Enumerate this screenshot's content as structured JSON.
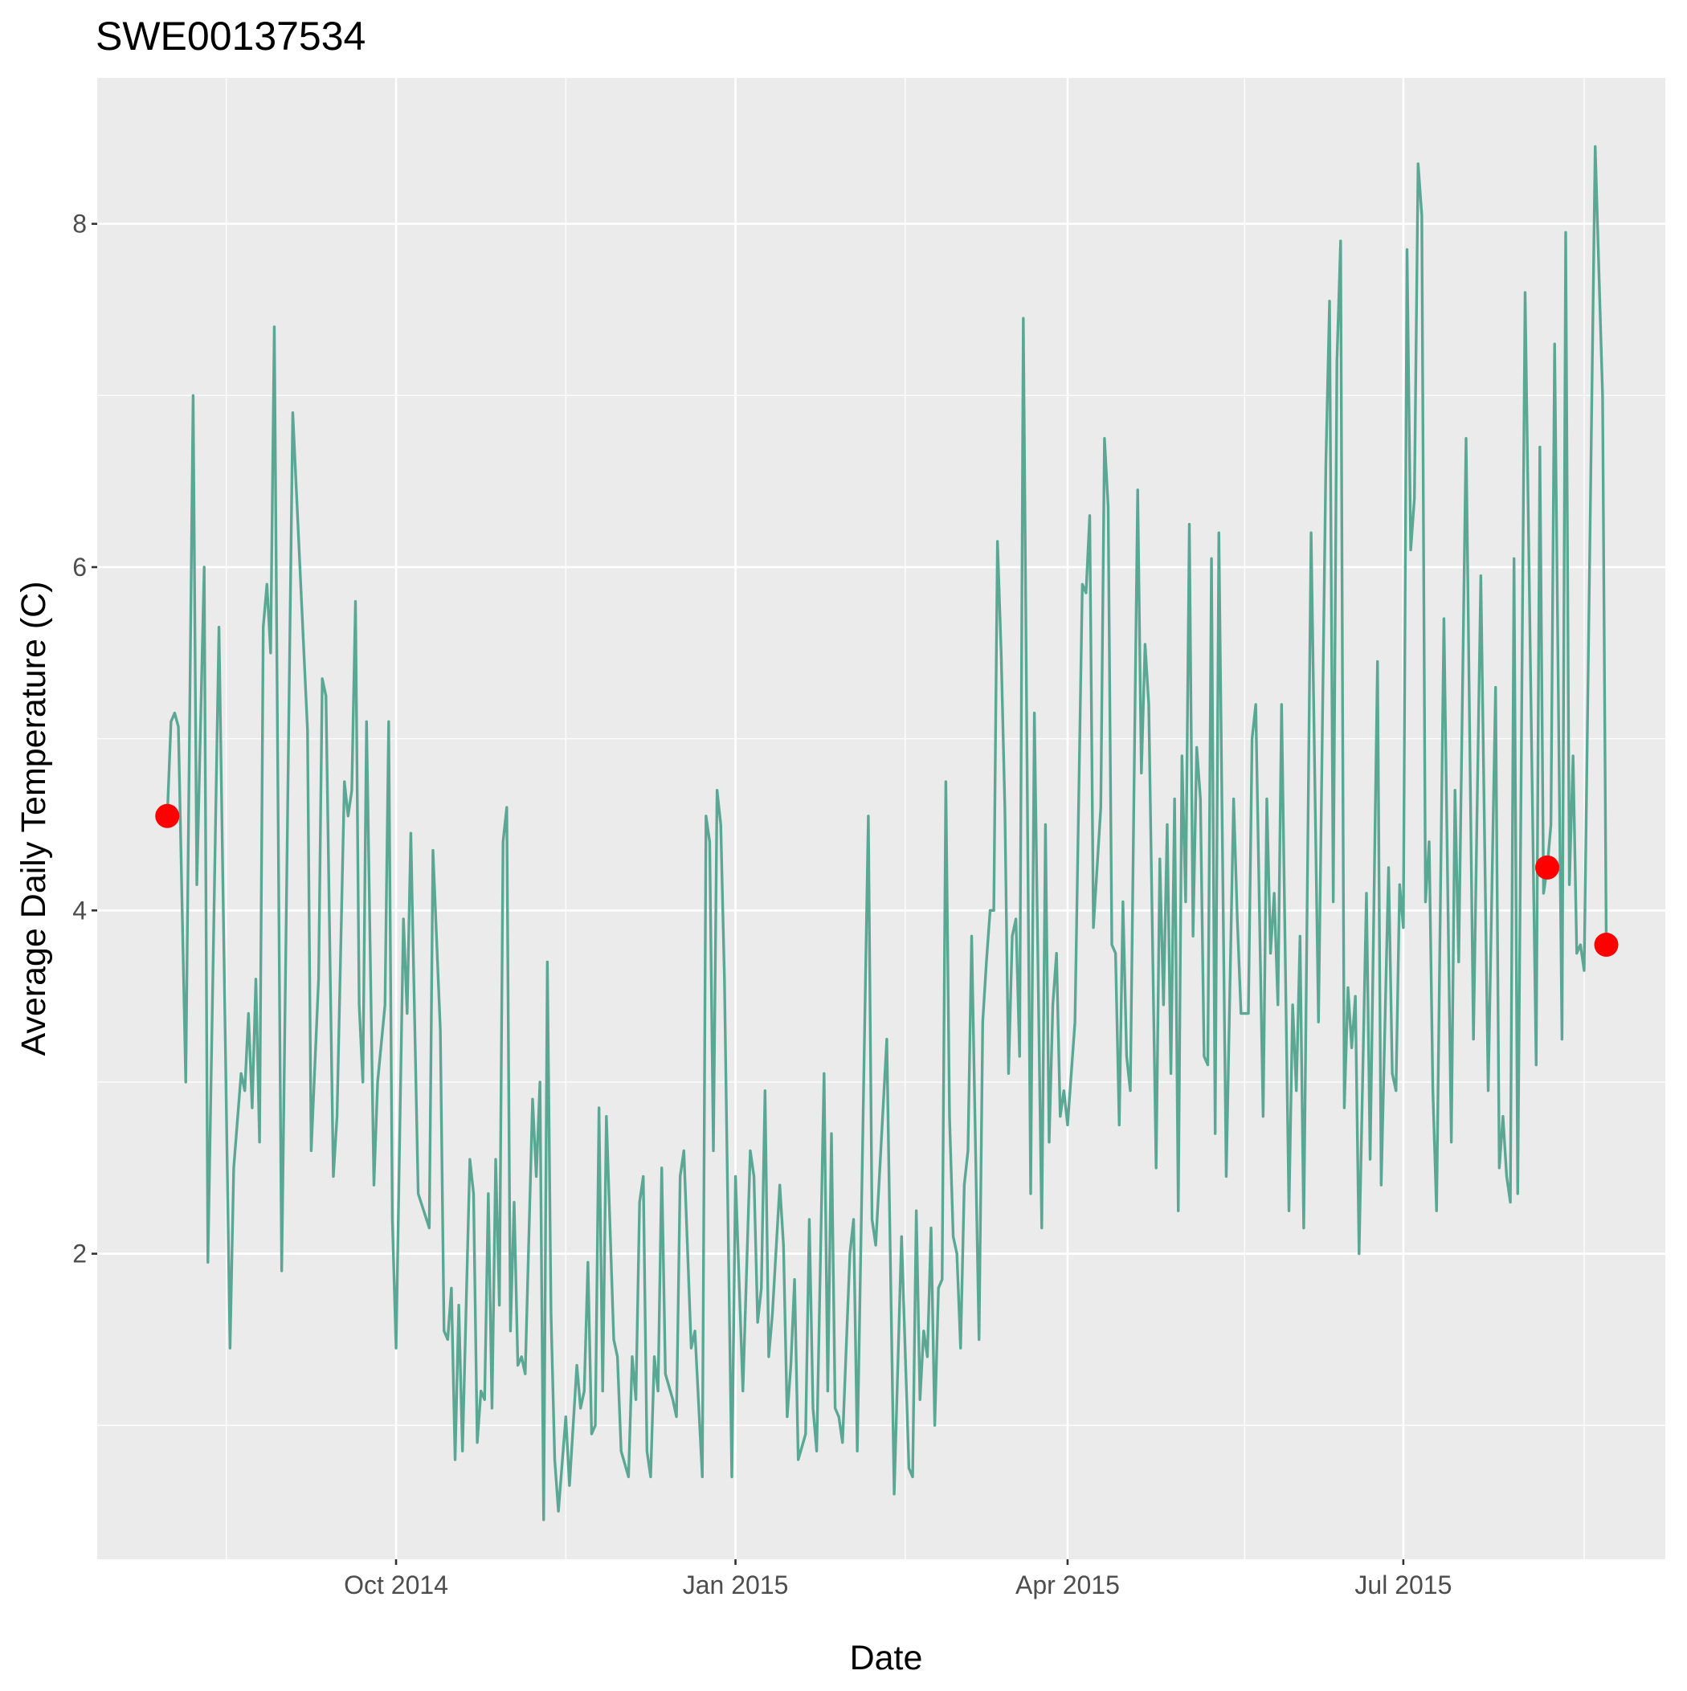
{
  "chart_data": {
    "type": "line",
    "title": "SWE00137534",
    "x_label": "Date",
    "y_label": "Average Daily Temperature (C)",
    "x": [
      16282,
      16283,
      16284,
      16285,
      16287,
      16289,
      16290,
      16292,
      16293,
      16296,
      16299,
      16300,
      16302,
      16303,
      16304,
      16305,
      16306,
      16307,
      16308,
      16309,
      16310,
      16311,
      16313,
      16316,
      16320,
      16321,
      16323,
      16324,
      16325,
      16327,
      16328,
      16330,
      16331,
      16332,
      16333,
      16334,
      16335,
      16336,
      16338,
      16339,
      16341,
      16342,
      16343,
      16344,
      16346,
      16347,
      16348,
      16350,
      16353,
      16354,
      16356,
      16357,
      16358,
      16359,
      16360,
      16361,
      16362,
      16364,
      16365,
      16366,
      16367,
      16368,
      16369,
      16370,
      16371,
      16372,
      16373,
      16374,
      16375,
      16376,
      16377,
      16378,
      16379,
      16381,
      16382,
      16383,
      16384,
      16385,
      16386,
      16387,
      16388,
      16390,
      16391,
      16393,
      16394,
      16395,
      16396,
      16397,
      16398,
      16399,
      16400,
      16401,
      16403,
      16404,
      16405,
      16407,
      16408,
      16409,
      16410,
      16411,
      16412,
      16413,
      16414,
      16415,
      16416,
      16417,
      16419,
      16420,
      16421,
      16422,
      16424,
      16425,
      16427,
      16428,
      16429,
      16430,
      16431,
      16432,
      16433,
      16435,
      16436,
      16438,
      16440,
      16441,
      16442,
      16443,
      16444,
      16445,
      16446,
      16448,
      16449,
      16450,
      16451,
      16452,
      16453,
      16455,
      16456,
      16457,
      16458,
      16460,
      16461,
      16462,
      16463,
      16464,
      16465,
      16467,
      16468,
      16469,
      16472,
      16473,
      16474,
      16477,
      16479,
      16481,
      16483,
      16484,
      16485,
      16486,
      16487,
      16488,
      16489,
      16490,
      16491,
      16492,
      16493,
      16494,
      16495,
      16496,
      16497,
      16498,
      16499,
      16500,
      16502,
      16503,
      16504,
      16505,
      16506,
      16507,
      16508,
      16509,
      16510,
      16511,
      16512,
      16513,
      16514,
      16516,
      16517,
      16519,
      16520,
      16521,
      16522,
      16523,
      16524,
      16525,
      16526,
      16528,
      16530,
      16531,
      16532,
      16533,
      16535,
      16536,
      16537,
      16538,
      16539,
      16540,
      16541,
      16542,
      16543,
      16545,
      16546,
      16547,
      16548,
      16550,
      16551,
      16552,
      16553,
      16554,
      16555,
      16556,
      16557,
      16558,
      16559,
      16560,
      16561,
      16562,
      16563,
      16564,
      16565,
      16566,
      16567,
      16569,
      16571,
      16572,
      16573,
      16575,
      16576,
      16577,
      16579,
      16580,
      16581,
      16582,
      16583,
      16584,
      16586,
      16587,
      16588,
      16589,
      16590,
      16592,
      16594,
      16596,
      16597,
      16598,
      16599,
      16600,
      16601,
      16602,
      16603,
      16604,
      16605,
      16607,
      16608,
      16610,
      16611,
      16613,
      16614,
      16615,
      16616,
      16617,
      16618,
      16619,
      16620,
      16621,
      16622,
      16623,
      16624,
      16625,
      16626,
      16628,
      16630,
      16631,
      16632,
      16634,
      16636,
      16638,
      16640,
      16642,
      16643,
      16644,
      16645,
      16646,
      16647,
      16648,
      16650,
      16653,
      16654,
      16655,
      16656,
      16657,
      16658,
      16660,
      16661,
      16662,
      16663,
      16664,
      16665,
      16666,
      16669,
      16671,
      16672
    ],
    "values": [
      4.55,
      5.1,
      5.15,
      5.07,
      3.0,
      7.0,
      4.15,
      6.0,
      1.95,
      5.65,
      1.45,
      2.5,
      3.05,
      2.95,
      3.4,
      2.85,
      3.6,
      2.65,
      5.65,
      5.9,
      5.5,
      7.4,
      1.9,
      6.9,
      5.05,
      2.6,
      3.6,
      5.35,
      5.25,
      2.45,
      2.8,
      4.75,
      4.55,
      4.7,
      5.8,
      3.45,
      3.0,
      5.1,
      2.4,
      3.0,
      3.45,
      5.1,
      2.2,
      1.45,
      3.95,
      3.4,
      4.45,
      2.35,
      2.15,
      4.35,
      3.3,
      1.55,
      1.5,
      1.8,
      0.8,
      1.7,
      0.85,
      2.55,
      2.35,
      0.9,
      1.2,
      1.15,
      2.35,
      1.1,
      2.55,
      1.7,
      4.4,
      4.6,
      1.55,
      2.3,
      1.35,
      1.4,
      1.3,
      2.9,
      2.45,
      3.0,
      0.45,
      3.7,
      1.65,
      0.8,
      0.5,
      1.05,
      0.65,
      1.35,
      1.1,
      1.2,
      1.95,
      0.95,
      1.0,
      2.85,
      1.2,
      2.8,
      1.5,
      1.4,
      0.85,
      0.7,
      1.4,
      1.15,
      2.3,
      2.45,
      0.85,
      0.7,
      1.4,
      1.2,
      2.5,
      1.3,
      1.15,
      1.05,
      2.45,
      2.6,
      1.45,
      1.55,
      0.7,
      4.55,
      4.4,
      2.6,
      4.7,
      4.5,
      3.6,
      0.7,
      2.45,
      1.2,
      2.6,
      2.45,
      1.6,
      1.8,
      2.95,
      1.4,
      1.65,
      2.4,
      2.05,
      1.05,
      1.35,
      1.85,
      0.8,
      0.95,
      2.2,
      1.1,
      0.85,
      3.05,
      1.2,
      2.7,
      1.1,
      1.05,
      0.9,
      2.0,
      2.2,
      0.85,
      4.55,
      2.2,
      2.05,
      3.25,
      0.6,
      2.1,
      0.75,
      0.7,
      2.25,
      1.15,
      1.55,
      1.4,
      2.15,
      1.0,
      1.8,
      1.85,
      4.75,
      2.8,
      2.1,
      2.0,
      1.45,
      2.4,
      2.6,
      3.85,
      1.5,
      3.35,
      3.7,
      4.0,
      4.0,
      6.15,
      5.5,
      4.6,
      3.05,
      3.85,
      3.95,
      3.15,
      7.45,
      2.35,
      5.15,
      2.15,
      4.5,
      2.65,
      3.45,
      3.75,
      2.8,
      2.95,
      2.75,
      3.35,
      5.9,
      5.85,
      6.3,
      3.9,
      4.6,
      6.75,
      6.35,
      3.8,
      3.75,
      2.75,
      4.05,
      3.15,
      2.95,
      6.45,
      4.8,
      5.55,
      5.2,
      2.5,
      4.3,
      3.45,
      4.5,
      3.05,
      4.65,
      2.25,
      4.9,
      4.05,
      6.25,
      3.85,
      4.95,
      4.65,
      3.15,
      3.1,
      6.05,
      2.7,
      6.2,
      2.45,
      4.65,
      3.95,
      3.4,
      3.4,
      5.0,
      5.2,
      2.8,
      4.65,
      3.75,
      4.1,
      3.45,
      5.2,
      2.25,
      3.45,
      2.95,
      3.85,
      2.15,
      6.2,
      3.35,
      6.6,
      7.55,
      4.05,
      7.2,
      7.9,
      2.85,
      3.55,
      3.2,
      3.5,
      2.0,
      4.1,
      2.55,
      5.45,
      2.4,
      4.25,
      3.05,
      2.95,
      4.15,
      3.9,
      7.85,
      6.1,
      6.4,
      8.35,
      8.05,
      4.05,
      4.4,
      2.95,
      2.25,
      5.7,
      2.65,
      4.7,
      3.7,
      6.75,
      3.25,
      5.95,
      2.95,
      5.3,
      2.5,
      2.8,
      2.45,
      2.3,
      6.05,
      2.35,
      7.6,
      3.1,
      6.7,
      4.1,
      4.25,
      4.5,
      7.3,
      3.25,
      7.95,
      4.15,
      4.9,
      3.75,
      3.8,
      3.65,
      8.45,
      7.0,
      3.8
    ],
    "color": "#5aa893",
    "points": {
      "x": [
        16282,
        16656,
        16672
      ],
      "values": [
        4.55,
        4.25,
        3.8
      ],
      "color": "#ff0000"
    },
    "xlim": [
      16263,
      16688
    ],
    "ylim": [
      0.22,
      8.85
    ],
    "xticks": [
      {
        "value": 16344,
        "label": "Oct 2014"
      },
      {
        "value": 16436,
        "label": "Jan 2015"
      },
      {
        "value": 16526,
        "label": "Apr 2015"
      },
      {
        "value": 16617,
        "label": "Jul 2015"
      }
    ],
    "yticks": [
      2,
      4,
      6,
      8
    ],
    "grid": true
  }
}
